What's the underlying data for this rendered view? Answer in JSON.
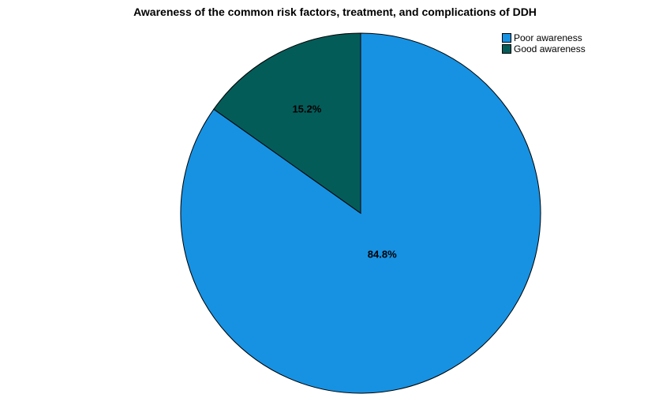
{
  "chart_data": {
    "type": "pie",
    "title": "Awareness of the common risk factors, treatment, and complications of DDH",
    "series": [
      {
        "name": "Poor awareness",
        "value": 84.8,
        "percent_label": "84.8%",
        "color": "#1792E3"
      },
      {
        "name": "Good awareness",
        "value": 15.2,
        "percent_label": "15.2%",
        "color": "#045C59"
      }
    ],
    "start_angle": "12-o-clock",
    "direction": "clockwise",
    "legend_position": "top-right",
    "slice_border_color": "#000000",
    "slice_label_color": "#000000",
    "label_radius_fractions": [
      0.26,
      0.65
    ],
    "background_color": "#ffffff"
  }
}
